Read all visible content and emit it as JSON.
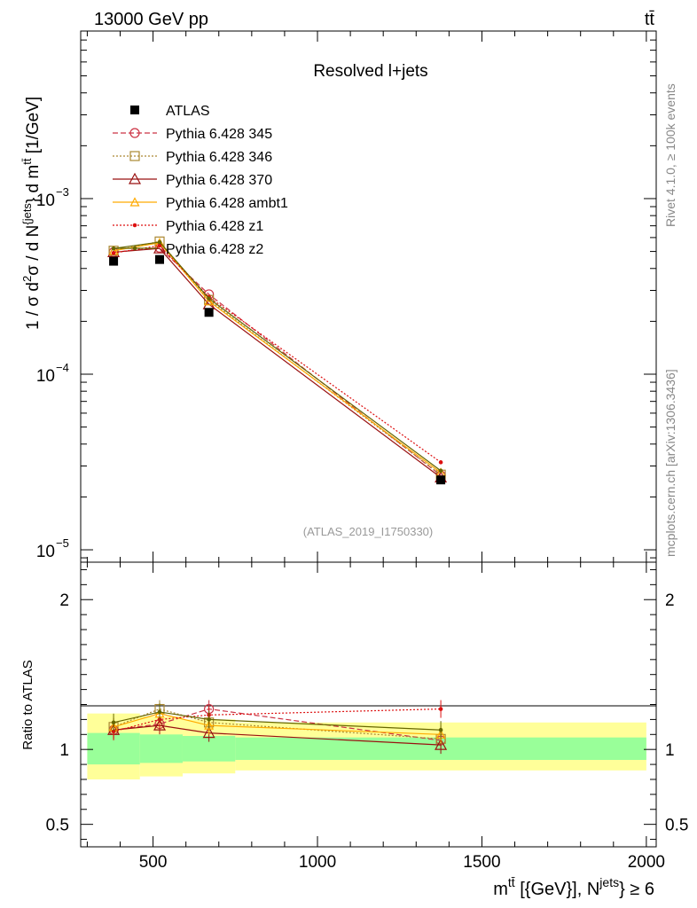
{
  "header": {
    "energy_label": "13000 GeV pp",
    "process_label": "tt̄"
  },
  "side_text": {
    "rivet": "Rivet 4.1.0, ≥ 100k events",
    "source": "mcplots.cern.ch [arXiv:1306.3436]"
  },
  "chart_data": {
    "type": "line",
    "title": "Resolved l+jets",
    "analysis_id": "(ATLAS_2019_I1750330)",
    "xlabel": "m^{tt̄} [{GeV}], N^{jets} ≥ 6",
    "xlabel_parts": {
      "m": "m",
      "m_sup": "tt̄",
      "unit": " [{GeV}], N",
      "n_sup": "jets",
      "tail": "} ≥ 6"
    },
    "ylabel": "1 / σ d²σ / d N^{jets} } d m^{tt̄} [1/GeV]",
    "ylabel_parts": {
      "a": "1 / σ d",
      "a_sup": "2",
      "b": "σ / d N",
      "b_sup": "{jets",
      "c": "} d m",
      "c_sup": "tt̄",
      "d": " [1/GeV]"
    },
    "ratio_ylabel": "Ratio to ATLAS",
    "xlim": [
      280,
      2030
    ],
    "ylim": [
      8.5e-06,
      0.009
    ],
    "yscale": "log",
    "ratio_ylim": [
      0.35,
      2.25
    ],
    "x_ticks": [
      500,
      1000,
      1500,
      2000
    ],
    "x_tick_labels": [
      "500",
      "1000",
      "1500",
      "2000"
    ],
    "y_major_ticks": [
      {
        "value": 1e-05,
        "base": "10",
        "exp": "−5"
      },
      {
        "value": 0.0001,
        "base": "10",
        "exp": "−4"
      },
      {
        "value": 0.001,
        "base": "10",
        "exp": "−3"
      }
    ],
    "ratio_ticks": [
      {
        "value": 0.5,
        "label": "0.5"
      },
      {
        "value": 1,
        "label": "1"
      },
      {
        "value": 2,
        "label": "2"
      }
    ],
    "bins": [
      {
        "x": 380,
        "lo": 300,
        "hi": 460
      },
      {
        "x": 520,
        "lo": 460,
        "hi": 590
      },
      {
        "x": 670,
        "lo": 590,
        "hi": 750
      },
      {
        "x": 1375,
        "lo": 750,
        "hi": 2000
      }
    ],
    "data": {
      "name": "ATLAS",
      "x": [
        380,
        520,
        670,
        1375
      ],
      "y": [
        0.00044,
        0.00045,
        0.000225,
        2.5e-05
      ]
    },
    "bands": {
      "inner": [
        {
          "lo": 300,
          "hi": 460,
          "down": 0.9,
          "up": 1.11
        },
        {
          "lo": 460,
          "hi": 590,
          "down": 0.91,
          "up": 1.1
        },
        {
          "lo": 590,
          "hi": 750,
          "down": 0.92,
          "up": 1.09
        },
        {
          "lo": 750,
          "hi": 2000,
          "down": 0.93,
          "up": 1.08
        }
      ],
      "outer": [
        {
          "lo": 300,
          "hi": 460,
          "down": 0.8,
          "up": 1.24
        },
        {
          "lo": 460,
          "hi": 590,
          "down": 0.82,
          "up": 1.22
        },
        {
          "lo": 590,
          "hi": 750,
          "down": 0.84,
          "up": 1.2
        },
        {
          "lo": 750,
          "hi": 2000,
          "down": 0.86,
          "up": 1.18
        }
      ],
      "inner_color": "#99ff99",
      "outer_color": "#ffff99"
    },
    "series": [
      {
        "name": "Pythia 6.428 345",
        "color": "#cc3344",
        "dash": "6,3",
        "marker": "circle",
        "values": [
          0.000495,
          0.000525,
          0.000285,
          2.65e-05
        ],
        "ratio": [
          1.13,
          1.17,
          1.27,
          1.06
        ]
      },
      {
        "name": "Pythia 6.428 346",
        "color": "#aa8833",
        "dash": "2,2",
        "marker": "square",
        "values": [
          0.000505,
          0.00057,
          0.000265,
          2.68e-05
        ],
        "ratio": [
          1.15,
          1.27,
          1.18,
          1.07
        ]
      },
      {
        "name": "Pythia 6.428 370",
        "color": "#991111",
        "dash": "",
        "marker": "triangle-open",
        "values": [
          0.000495,
          0.00052,
          0.00025,
          2.58e-05
        ],
        "ratio": [
          1.13,
          1.16,
          1.11,
          1.03
        ]
      },
      {
        "name": "Pythia 6.428 ambt1",
        "color": "#ffaa00",
        "dash": "",
        "marker": "triangle-small",
        "values": [
          0.000505,
          0.00056,
          0.00026,
          2.75e-05
        ],
        "ratio": [
          1.15,
          1.24,
          1.16,
          1.1
        ]
      },
      {
        "name": "Pythia 6.428 z1",
        "color": "#dd1111",
        "dash": "2,2",
        "marker": "dot",
        "values": [
          0.00049,
          0.00054,
          0.000275,
          3.15e-05
        ],
        "ratio": [
          1.12,
          1.2,
          1.23,
          1.27
        ]
      },
      {
        "name": "Pythia 6.428 z2",
        "color": "#666600",
        "dash": "",
        "marker": "dot",
        "values": [
          0.00052,
          0.000565,
          0.00027,
          2.82e-05
        ],
        "ratio": [
          1.18,
          1.25,
          1.2,
          1.13
        ]
      }
    ]
  }
}
